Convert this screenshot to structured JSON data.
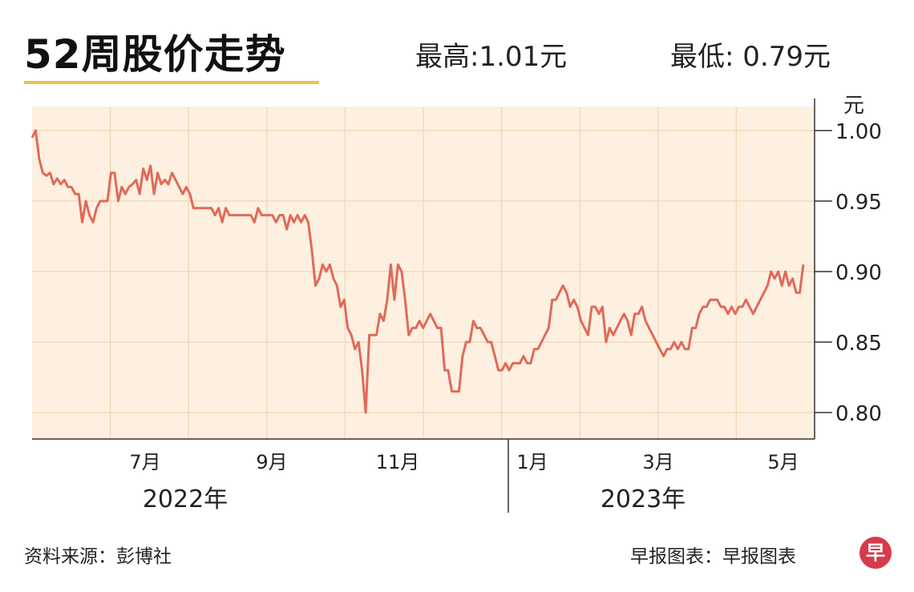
{
  "header": {
    "title": "52周股价走势",
    "high_label": "最高:1.01元",
    "low_label": "最低: 0.79元"
  },
  "footer": {
    "source": "资料来源：彭博社",
    "credit": "早报图表：早报图表",
    "logo_glyph": "早"
  },
  "colors": {
    "plot_background": "#fdf0e0",
    "grid": "#f3d9bc",
    "line": "#e06a5a",
    "underline": "#f2c14e",
    "logo": "#d63a4c"
  },
  "chart_data": {
    "type": "line",
    "title": "52周股价走势",
    "y_unit": "元",
    "ylim": [
      0.78,
      1.02
    ],
    "y_ticks": [
      "1.00",
      "0.95",
      "0.90",
      "0.85",
      "0.80"
    ],
    "x_ticks": [
      "7月",
      "9月",
      "11月",
      "1月",
      "3月",
      "5月"
    ],
    "year_labels": [
      "2022年",
      "2023年"
    ],
    "grid": true,
    "series": [
      {
        "values": [
          0.995,
          1.0,
          0.98,
          0.97,
          0.968,
          0.97,
          0.962,
          0.966,
          0.962,
          0.965,
          0.96,
          0.96,
          0.955,
          0.955,
          0.935,
          0.95,
          0.94,
          0.935,
          0.945,
          0.95,
          0.95,
          0.95,
          0.97,
          0.97,
          0.95,
          0.96,
          0.955,
          0.96,
          0.962,
          0.965,
          0.955,
          0.973,
          0.965,
          0.975,
          0.955,
          0.97,
          0.962,
          0.965,
          0.962,
          0.97,
          0.965,
          0.96,
          0.955,
          0.96,
          0.955,
          0.945,
          0.945,
          0.945,
          0.945,
          0.945,
          0.945,
          0.94,
          0.945,
          0.935,
          0.945,
          0.94,
          0.94,
          0.94,
          0.94,
          0.94,
          0.94,
          0.94,
          0.935,
          0.945,
          0.94,
          0.94,
          0.94,
          0.94,
          0.935,
          0.94,
          0.94,
          0.93,
          0.94,
          0.935,
          0.94,
          0.935,
          0.94,
          0.935,
          0.915,
          0.89,
          0.895,
          0.905,
          0.9,
          0.905,
          0.895,
          0.89,
          0.875,
          0.88,
          0.86,
          0.855,
          0.845,
          0.85,
          0.83,
          0.8,
          0.855,
          0.855,
          0.855,
          0.87,
          0.865,
          0.88,
          0.905,
          0.88,
          0.905,
          0.9,
          0.88,
          0.855,
          0.86,
          0.86,
          0.865,
          0.86,
          0.865,
          0.87,
          0.865,
          0.86,
          0.86,
          0.83,
          0.83,
          0.815,
          0.815,
          0.815,
          0.84,
          0.85,
          0.85,
          0.865,
          0.86,
          0.86,
          0.855,
          0.85,
          0.85,
          0.84,
          0.83,
          0.83,
          0.835,
          0.83,
          0.835,
          0.835,
          0.835,
          0.84,
          0.835,
          0.835,
          0.845,
          0.845,
          0.85,
          0.855,
          0.86,
          0.88,
          0.88,
          0.885,
          0.89,
          0.885,
          0.875,
          0.88,
          0.875,
          0.865,
          0.86,
          0.855,
          0.875,
          0.875,
          0.87,
          0.875,
          0.85,
          0.86,
          0.855,
          0.86,
          0.865,
          0.87,
          0.865,
          0.855,
          0.87,
          0.87,
          0.875,
          0.865,
          0.86,
          0.855,
          0.85,
          0.845,
          0.84,
          0.845,
          0.845,
          0.85,
          0.845,
          0.85,
          0.845,
          0.845,
          0.86,
          0.86,
          0.87,
          0.875,
          0.875,
          0.88,
          0.88,
          0.88,
          0.875,
          0.875,
          0.87,
          0.875,
          0.87,
          0.875,
          0.875,
          0.88,
          0.875,
          0.87,
          0.875,
          0.88,
          0.885,
          0.89,
          0.9,
          0.895,
          0.9,
          0.89,
          0.9,
          0.89,
          0.895,
          0.885,
          0.885,
          0.905
        ]
      }
    ]
  }
}
